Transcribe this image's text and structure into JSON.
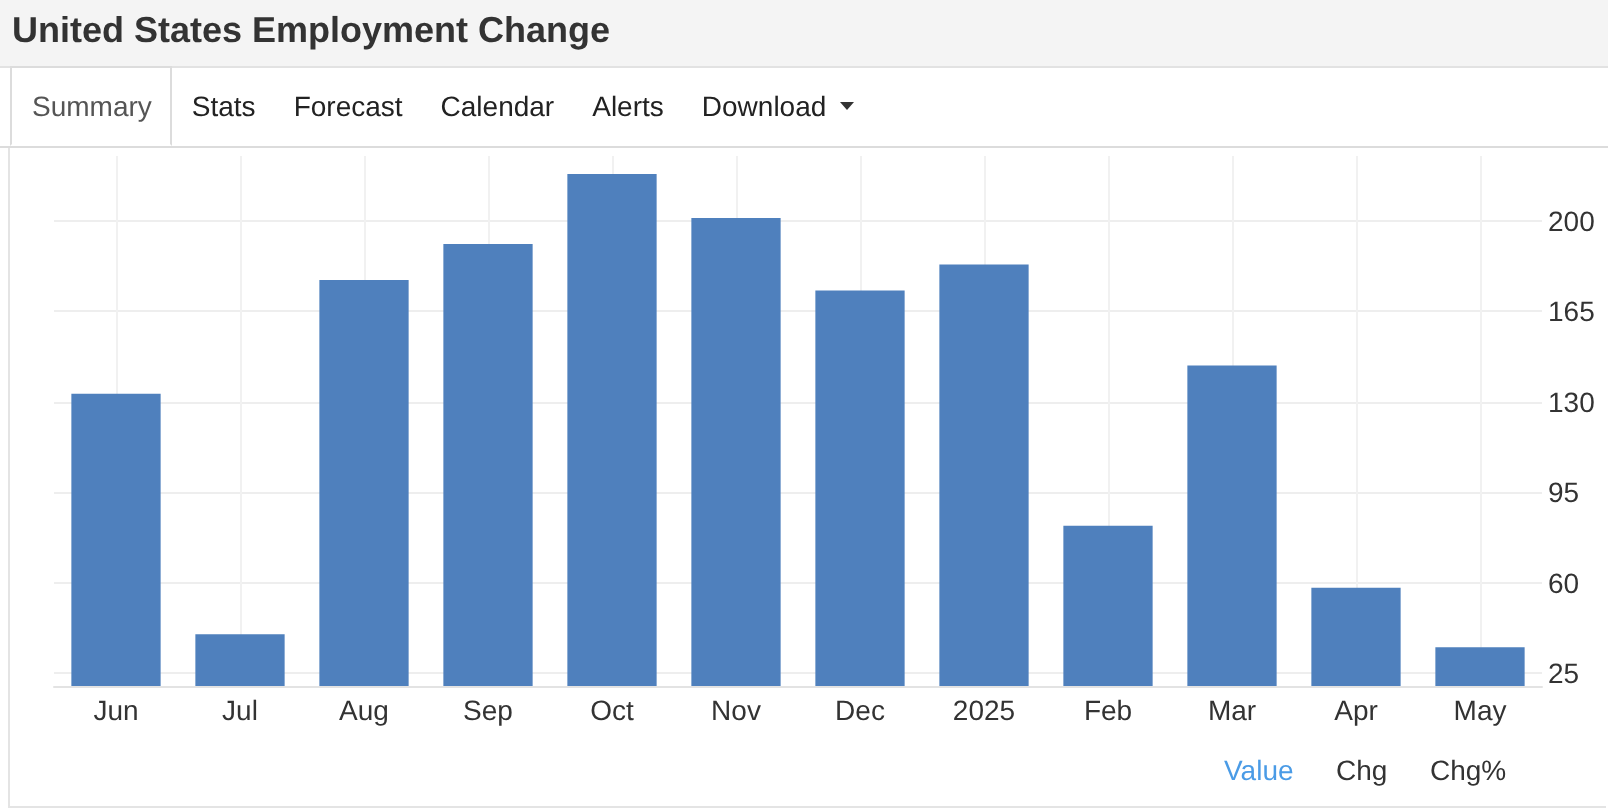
{
  "chart_data": {
    "type": "bar",
    "title": "United States Employment Change",
    "categories": [
      "Jun",
      "Jul",
      "Aug",
      "Sep",
      "Oct",
      "Nov",
      "Dec",
      "2025",
      "Feb",
      "Mar",
      "Apr",
      "May"
    ],
    "values": [
      133,
      40,
      177,
      191,
      218,
      201,
      173,
      183,
      82,
      144,
      58,
      35
    ],
    "color": "#4f80bd",
    "ylim": [
      20,
      225
    ],
    "yticks": [
      25,
      60,
      95,
      130,
      165,
      200
    ],
    "grid": true,
    "annotations": [
      "Summary",
      "Stats",
      "Forecast",
      "Calendar",
      "Alerts",
      "Download",
      "Value",
      "Chg",
      "Chg%"
    ]
  }
}
